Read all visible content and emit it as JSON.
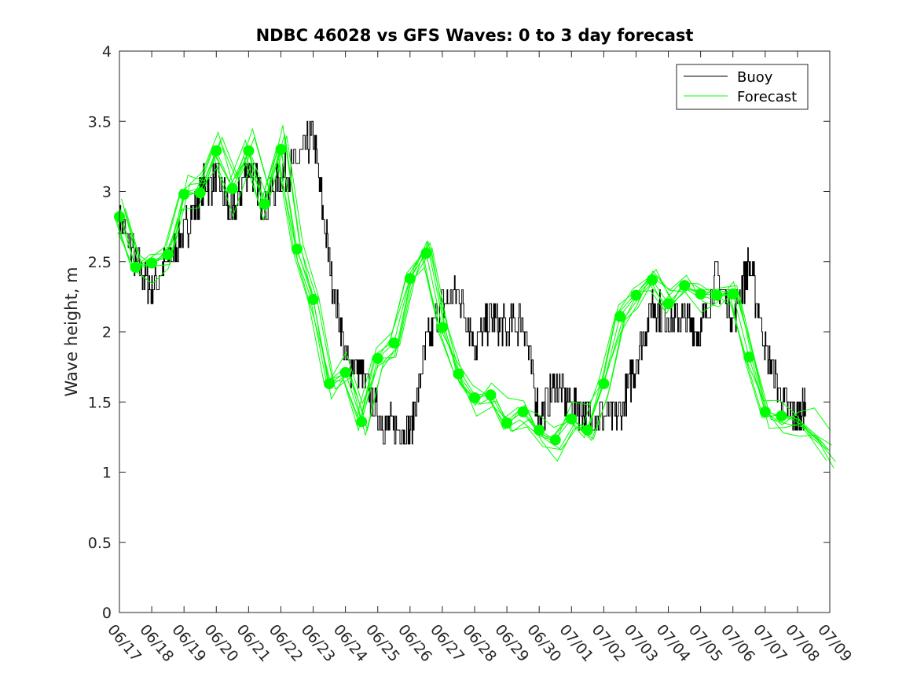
{
  "chart_data": {
    "type": "line",
    "title": "NDBC 46028 vs GFS Waves: 0 to 3 day forecast",
    "xlabel": "",
    "ylabel": "Wave height, m",
    "ylim": [
      0,
      4
    ],
    "yticks": [
      0,
      0.5,
      1,
      1.5,
      2,
      2.5,
      3,
      3.5,
      4
    ],
    "ytick_labels": [
      "0",
      "0.5",
      "1",
      "1.5",
      "2",
      "2.5",
      "3",
      "3.5",
      "4"
    ],
    "xlim": [
      "2024-06-17",
      "2024-07-09"
    ],
    "xtick_labels": [
      "06/17",
      "06/18",
      "06/19",
      "06/20",
      "06/21",
      "06/22",
      "06/23",
      "06/24",
      "06/25",
      "06/26",
      "06/27",
      "06/28",
      "06/29",
      "06/30",
      "07/01",
      "07/02",
      "07/03",
      "07/04",
      "07/05",
      "07/06",
      "07/07",
      "07/08",
      "07/09"
    ],
    "grid": false,
    "legend": {
      "placement": "top-right",
      "entries": [
        "Buoy",
        "Forecast"
      ]
    },
    "colors": {
      "buoy": "#000000",
      "forecast": "#00ff00",
      "markers": "#00ff00"
    },
    "series": [
      {
        "name": "Buoy",
        "x": [
          "06/17 00:00",
          "06/17 12:00",
          "06/18 00:00",
          "06/18 12:00",
          "06/19 00:00",
          "06/19 12:00",
          "06/20 00:00",
          "06/20 12:00",
          "06/21 00:00",
          "06/21 12:00",
          "06/22 00:00",
          "06/22 12:00",
          "06/23 00:00",
          "06/23 12:00",
          "06/24 00:00",
          "06/24 12:00",
          "06/25 00:00",
          "06/25 12:00",
          "06/26 00:00",
          "06/26 12:00",
          "06/27 00:00",
          "06/27 12:00",
          "06/28 00:00",
          "06/28 12:00",
          "06/29 00:00",
          "06/29 12:00",
          "06/30 00:00",
          "06/30 12:00",
          "07/01 00:00",
          "07/01 12:00",
          "07/02 00:00",
          "07/02 12:00",
          "07/03 00:00",
          "07/03 12:00",
          "07/04 00:00",
          "07/04 12:00",
          "07/05 00:00",
          "07/05 12:00",
          "07/06 00:00",
          "07/06 12:00",
          "07/07 00:00",
          "07/07 12:00",
          "07/08 00:00",
          "07/08 06:00"
        ],
        "values": [
          2.8,
          2.5,
          2.3,
          2.5,
          2.7,
          3.0,
          3.1,
          2.8,
          3.2,
          2.9,
          3.1,
          3.2,
          3.4,
          2.5,
          1.8,
          1.7,
          1.4,
          1.3,
          1.3,
          1.9,
          2.2,
          2.3,
          1.9,
          2.1,
          2.0,
          2.1,
          1.4,
          1.6,
          1.5,
          1.4,
          1.4,
          1.4,
          1.8,
          2.2,
          2.1,
          2.1,
          2.0,
          2.4,
          2.1,
          2.5,
          1.9,
          1.5,
          1.4,
          1.5
        ]
      },
      {
        "name": "Forecast",
        "x": [
          "06/17 00:00",
          "06/17 12:00",
          "06/18 00:00",
          "06/18 12:00",
          "06/19 00:00",
          "06/19 12:00",
          "06/20 00:00",
          "06/20 12:00",
          "06/21 00:00",
          "06/21 12:00",
          "06/22 00:00",
          "06/22 12:00",
          "06/23 00:00",
          "06/23 12:00",
          "06/24 00:00",
          "06/24 12:00",
          "06/25 00:00",
          "06/25 12:00",
          "06/26 00:00",
          "06/26 12:00",
          "06/27 00:00",
          "06/27 12:00",
          "06/28 00:00",
          "06/28 12:00",
          "06/29 00:00",
          "06/29 12:00",
          "06/30 00:00",
          "06/30 12:00",
          "07/01 00:00",
          "07/01 12:00",
          "07/02 00:00",
          "07/02 12:00",
          "07/03 00:00",
          "07/03 12:00",
          "07/04 00:00",
          "07/04 12:00",
          "07/05 00:00",
          "07/05 12:00",
          "07/06 00:00",
          "07/06 12:00",
          "07/07 00:00",
          "07/07 12:00",
          "07/08 00:00",
          "07/08 12:00",
          "07/09 00:00"
        ],
        "values": [
          2.82,
          2.46,
          2.49,
          2.55,
          2.98,
          2.99,
          3.29,
          3.02,
          3.29,
          2.91,
          3.3,
          2.59,
          2.23,
          1.63,
          1.71,
          1.36,
          1.81,
          1.92,
          2.38,
          2.56,
          2.03,
          1.7,
          1.53,
          1.55,
          1.35,
          1.43,
          1.3,
          1.23,
          1.38,
          1.3,
          1.63,
          2.11,
          2.26,
          2.37,
          2.2,
          2.33,
          2.27,
          2.26,
          2.27,
          1.82,
          1.43,
          1.4,
          1.38,
          1.28,
          1.15
        ]
      }
    ]
  }
}
